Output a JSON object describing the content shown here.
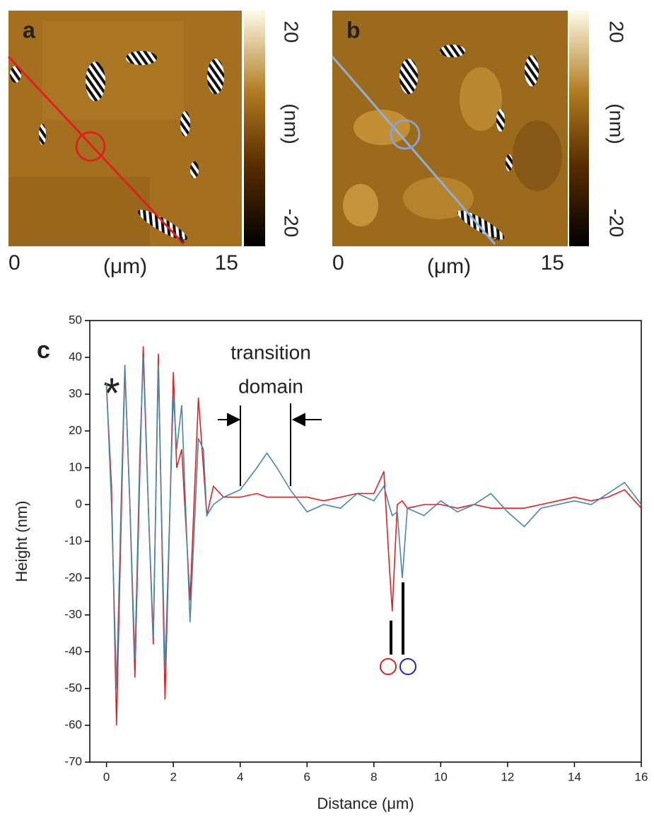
{
  "panels": [
    {
      "label": "a",
      "cbar_top": 20,
      "cbar_unit": "(nm)",
      "cbar_bottom": -20,
      "x_start": 0,
      "x_unit": "(μm)",
      "x_end": 15
    },
    {
      "label": "b",
      "cbar_top": 20,
      "cbar_unit": "(nm)",
      "cbar_bottom": -20,
      "x_start": 0,
      "x_unit": "(μm)",
      "x_end": 15
    }
  ],
  "chart_data": {
    "type": "line",
    "panel_label": "c",
    "annotation": [
      "transition",
      "domain"
    ],
    "x_label": "Distance (μm)",
    "y_label": "Height (nm)",
    "x": [
      0,
      0.15,
      0.3,
      0.45,
      0.55,
      0.7,
      0.85,
      1.0,
      1.1,
      1.25,
      1.4,
      1.55,
      1.75,
      1.9,
      2.0,
      2.1,
      2.25,
      2.5,
      2.75,
      2.9,
      3.0,
      3.2,
      3.5,
      4.0,
      4.5,
      4.8,
      5.1,
      5.5,
      6.0,
      6.5,
      7.0,
      7.5,
      8.0,
      8.3,
      8.45,
      8.55,
      8.7,
      8.85,
      9.0,
      9.5,
      10,
      10.5,
      11,
      11.5,
      12,
      12.5,
      13,
      13.5,
      14,
      14.5,
      15,
      15.5,
      16
    ],
    "series": [
      {
        "color": "#e02020",
        "values": [
          32,
          5,
          -60,
          0,
          37,
          0,
          -47,
          10,
          43,
          0,
          -38,
          41,
          -53,
          0,
          36,
          10,
          15,
          -26,
          29,
          10,
          -3,
          5,
          2,
          2,
          3,
          2,
          2,
          2,
          2,
          1,
          2,
          3,
          3,
          9,
          -15,
          -29,
          0,
          1,
          -1,
          0,
          0,
          -1,
          0,
          -1,
          -1,
          -1,
          0,
          1,
          2,
          1,
          2,
          4,
          -1
        ]
      },
      {
        "color": "#4a86a8",
        "values": [
          33,
          0,
          -50,
          5,
          38,
          0,
          -42,
          15,
          40,
          0,
          -36,
          38,
          -45,
          0,
          30,
          15,
          27,
          -32,
          18,
          15,
          -3,
          0,
          2,
          4,
          10,
          14,
          10,
          4,
          -2,
          0,
          -1,
          3,
          1,
          5,
          0,
          -3,
          -2,
          -20,
          -1,
          -3,
          1,
          -2,
          0,
          3,
          -2,
          -6,
          -1,
          0,
          1,
          0,
          3,
          6,
          0
        ]
      }
    ],
    "xlim": [
      -0.5,
      16
    ],
    "ylim": [
      -70,
      50
    ],
    "xticks": [
      0,
      2,
      4,
      6,
      8,
      10,
      12,
      14,
      16
    ],
    "yticks": [
      -70,
      -60,
      -50,
      -40,
      -30,
      -20,
      -10,
      0,
      10,
      20,
      30,
      40,
      50
    ]
  }
}
